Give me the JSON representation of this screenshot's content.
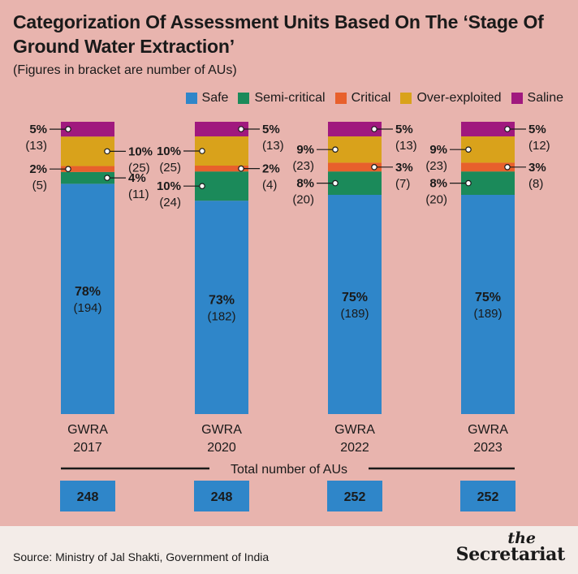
{
  "header": {
    "title": "Categorization Of Assessment Units Based On The ‘Stage Of Ground Water Extraction’",
    "subtitle": "(Figures in bracket are number of AUs)"
  },
  "legend": [
    {
      "label": "Safe",
      "color": "#2f86c9"
    },
    {
      "label": "Semi-critical",
      "color": "#1b8a5a"
    },
    {
      "label": "Critical",
      "color": "#e8602c"
    },
    {
      "label": "Over-exploited",
      "color": "#d9a21b"
    },
    {
      "label": "Saline",
      "color": "#a0197e"
    }
  ],
  "chart_data": {
    "type": "bar",
    "stacked": true,
    "categories": [
      "GWRA\n2017",
      "GWRA\n2020",
      "GWRA\n2022",
      "GWRA\n2023"
    ],
    "series": [
      {
        "name": "Safe",
        "color": "#2f86c9",
        "percent": [
          78,
          73,
          75,
          75
        ],
        "count": [
          194,
          182,
          189,
          189
        ],
        "labels": [
          "78%",
          "73%",
          "75%",
          "75%"
        ],
        "count_labels": [
          "(194)",
          "(182)",
          "(189)",
          "(189)"
        ]
      },
      {
        "name": "Semi-critical",
        "color": "#1b8a5a",
        "percent": [
          4,
          10,
          8,
          8
        ],
        "count": [
          11,
          24,
          20,
          20
        ],
        "labels": [
          "4%",
          "10%",
          "8%",
          "8%"
        ],
        "count_labels": [
          "(11)",
          "(24)",
          "(20)",
          "(20)"
        ]
      },
      {
        "name": "Critical",
        "color": "#e8602c",
        "percent": [
          2,
          2,
          3,
          3
        ],
        "count": [
          5,
          4,
          7,
          8
        ],
        "labels": [
          "2%",
          "2%",
          "3%",
          "3%"
        ],
        "count_labels": [
          "(5)",
          "(4)",
          "(7)",
          "(8)"
        ]
      },
      {
        "name": "Over-exploited",
        "color": "#d9a21b",
        "percent": [
          10,
          10,
          9,
          9
        ],
        "count": [
          25,
          25,
          23,
          23
        ],
        "labels": [
          "10%",
          "10%",
          "9%",
          "9%"
        ],
        "count_labels": [
          "(25)",
          "(25)",
          "(23)",
          "(23)"
        ]
      },
      {
        "name": "Saline",
        "color": "#a0197e",
        "percent": [
          5,
          5,
          5,
          5
        ],
        "count": [
          13,
          13,
          13,
          12
        ],
        "labels": [
          "5%",
          "5%",
          "5%",
          "5%"
        ],
        "count_labels": [
          "(13)",
          "(13)",
          "(13)",
          "(12)"
        ]
      }
    ],
    "totals_label": "Total number of AUs",
    "totals": [
      248,
      248,
      252,
      252
    ]
  },
  "footer": {
    "source": "Source: Ministry of Jal Shakti, Government of India",
    "brand_the": "the",
    "brand_name": "Secretariat"
  }
}
